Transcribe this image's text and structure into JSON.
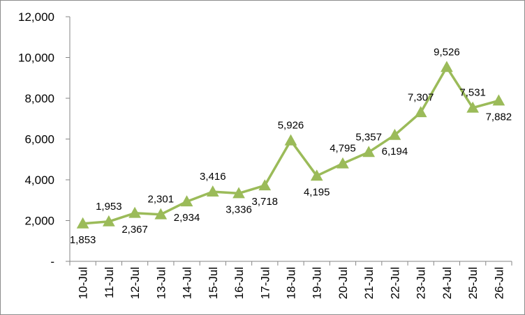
{
  "chart_data": {
    "type": "line",
    "title": "",
    "xlabel": "",
    "ylabel": "",
    "categories": [
      "10-Jul",
      "11-Jul",
      "12-Jul",
      "13-Jul",
      "14-Jul",
      "15-Jul",
      "16-Jul",
      "17-Jul",
      "18-Jul",
      "19-Jul",
      "20-Jul",
      "21-Jul",
      "22-Jul",
      "23-Jul",
      "24-Jul",
      "25-Jul",
      "26-Jul"
    ],
    "series": [
      {
        "values": [
          1853,
          1953,
          2367,
          2301,
          2934,
          3416,
          3336,
          3718,
          5926,
          4195,
          4795,
          5357,
          6194,
          7307,
          9526,
          7531,
          7882
        ],
        "data_labels": [
          "1,853",
          "1,953",
          "2,367",
          "2,301",
          "2,934",
          "3,416",
          "3,336",
          "3,718",
          "5,926",
          "4,195",
          "4,795",
          "5,357",
          "6,194",
          "7,307",
          "9,526",
          "7,531",
          "7,882"
        ],
        "color": "#9bbb59",
        "marker": "triangle"
      }
    ],
    "yticks": [
      "-",
      "2,000",
      "4,000",
      "6,000",
      "8,000",
      "10,000",
      "12,000"
    ],
    "ylim": [
      0,
      12000
    ],
    "grid": false,
    "legend": "none"
  }
}
